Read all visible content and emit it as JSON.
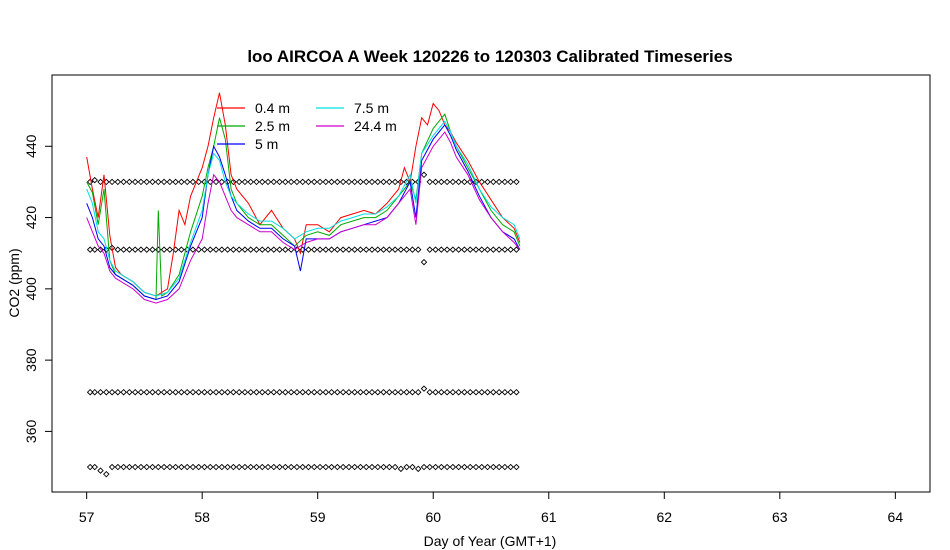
{
  "chart_data": {
    "type": "line",
    "title": "loo AIRCOA A  Week 120226 to 120303  Calibrated Timeseries",
    "xlabel": "Day of Year (GMT+1)",
    "ylabel": "CO2 (ppm)",
    "xlim": [
      56.7,
      64.3
    ],
    "ylim": [
      343,
      460
    ],
    "xticks": [
      57,
      58,
      59,
      60,
      61,
      62,
      63,
      64
    ],
    "yticks": [
      360,
      380,
      400,
      420,
      440
    ],
    "legend_position": "top-left",
    "series": [
      {
        "name": "0.4 m",
        "color": "#ff0000",
        "x": [
          57.0,
          57.05,
          57.1,
          57.15,
          57.2,
          57.25,
          57.3,
          57.4,
          57.5,
          57.6,
          57.7,
          57.75,
          57.8,
          57.85,
          57.9,
          57.95,
          58.0,
          58.05,
          58.1,
          58.15,
          58.2,
          58.25,
          58.3,
          58.4,
          58.5,
          58.6,
          58.7,
          58.8,
          58.85,
          58.9,
          59.0,
          59.1,
          59.2,
          59.3,
          59.4,
          59.5,
          59.6,
          59.7,
          59.75,
          59.8,
          59.85,
          59.9,
          59.95,
          60.0,
          60.05,
          60.1,
          60.15,
          60.2,
          60.3,
          60.4,
          60.5,
          60.6,
          60.7,
          60.75
        ],
        "y": [
          437,
          428,
          420,
          432,
          415,
          406,
          404,
          402,
          399,
          398,
          400,
          410,
          422,
          418,
          426,
          430,
          434,
          440,
          448,
          455,
          446,
          432,
          428,
          424,
          418,
          422,
          417,
          414,
          410,
          418,
          418,
          416,
          420,
          421,
          422,
          421,
          424,
          428,
          434,
          430,
          440,
          448,
          446,
          452,
          450,
          446,
          444,
          441,
          436,
          430,
          425,
          420,
          417,
          413
        ]
      },
      {
        "name": "2.5 m",
        "color": "#00aa00",
        "x": [
          57.0,
          57.05,
          57.1,
          57.15,
          57.2,
          57.25,
          57.3,
          57.4,
          57.5,
          57.6,
          57.62,
          57.65,
          57.7,
          57.8,
          57.9,
          58.0,
          58.05,
          58.1,
          58.15,
          58.2,
          58.25,
          58.3,
          58.4,
          58.5,
          58.6,
          58.7,
          58.8,
          58.9,
          59.0,
          59.1,
          59.2,
          59.3,
          59.4,
          59.5,
          59.6,
          59.7,
          59.8,
          59.85,
          59.9,
          60.0,
          60.05,
          60.1,
          60.15,
          60.2,
          60.3,
          60.4,
          60.5,
          60.6,
          60.7,
          60.75
        ],
        "y": [
          430,
          427,
          418,
          428,
          408,
          404,
          403,
          401,
          398,
          397,
          422,
          398,
          399,
          404,
          416,
          426,
          434,
          440,
          448,
          442,
          428,
          424,
          420,
          418,
          418,
          415,
          412,
          415,
          416,
          415,
          418,
          419,
          420,
          420,
          422,
          426,
          430,
          425,
          438,
          445,
          447,
          449,
          444,
          440,
          434,
          428,
          422,
          418,
          416,
          412
        ]
      },
      {
        "name": "5 m",
        "color": "#0000ff",
        "x": [
          57.0,
          57.05,
          57.1,
          57.15,
          57.2,
          57.25,
          57.3,
          57.4,
          57.5,
          57.6,
          57.7,
          57.8,
          57.9,
          58.0,
          58.05,
          58.1,
          58.15,
          58.2,
          58.25,
          58.3,
          58.4,
          58.5,
          58.6,
          58.7,
          58.8,
          58.85,
          58.9,
          59.0,
          59.1,
          59.2,
          59.3,
          59.4,
          59.5,
          59.6,
          59.7,
          59.8,
          59.85,
          59.9,
          60.0,
          60.05,
          60.1,
          60.15,
          60.2,
          60.3,
          60.4,
          60.5,
          60.6,
          60.7,
          60.75
        ],
        "y": [
          424,
          420,
          414,
          412,
          406,
          404,
          403,
          401,
          398,
          397,
          398,
          402,
          412,
          420,
          432,
          440,
          437,
          432,
          426,
          422,
          419,
          417,
          417,
          414,
          412,
          405,
          414,
          414,
          414,
          416,
          417,
          418,
          419,
          420,
          424,
          430,
          420,
          436,
          442,
          444,
          446,
          443,
          439,
          433,
          426,
          420,
          416,
          414,
          411
        ]
      },
      {
        "name": "7.5 m",
        "color": "#00e0e0",
        "x": [
          57.0,
          57.05,
          57.1,
          57.15,
          57.2,
          57.25,
          57.3,
          57.4,
          57.5,
          57.6,
          57.7,
          57.8,
          57.9,
          58.0,
          58.05,
          58.1,
          58.15,
          58.2,
          58.25,
          58.3,
          58.4,
          58.5,
          58.6,
          58.7,
          58.8,
          58.9,
          59.0,
          59.1,
          59.2,
          59.3,
          59.4,
          59.5,
          59.6,
          59.7,
          59.8,
          59.85,
          59.9,
          60.0,
          60.05,
          60.1,
          60.15,
          60.2,
          60.3,
          60.4,
          60.5,
          60.6,
          60.7,
          60.75
        ],
        "y": [
          428,
          424,
          416,
          414,
          408,
          405,
          404,
          402,
          399,
          398,
          399,
          403,
          413,
          422,
          432,
          438,
          436,
          430,
          426,
          424,
          421,
          419,
          419,
          417,
          414,
          416,
          417,
          417,
          419,
          420,
          421,
          421,
          423,
          426,
          432,
          424,
          438,
          443,
          445,
          447,
          444,
          440,
          435,
          428,
          423,
          420,
          418,
          414
        ]
      },
      {
        "name": "24.4 m",
        "color": "#cc00cc",
        "x": [
          57.0,
          57.05,
          57.1,
          57.15,
          57.2,
          57.25,
          57.3,
          57.4,
          57.5,
          57.6,
          57.7,
          57.8,
          57.9,
          58.0,
          58.05,
          58.1,
          58.15,
          58.2,
          58.25,
          58.3,
          58.4,
          58.5,
          58.6,
          58.7,
          58.8,
          58.9,
          59.0,
          59.1,
          59.2,
          59.3,
          59.4,
          59.5,
          59.6,
          59.7,
          59.8,
          59.85,
          59.9,
          60.0,
          60.05,
          60.1,
          60.15,
          60.2,
          60.3,
          60.4,
          60.5,
          60.6,
          60.7,
          60.75
        ],
        "y": [
          420,
          416,
          412,
          410,
          405,
          403,
          402,
          400,
          397,
          396,
          397,
          400,
          408,
          414,
          424,
          432,
          430,
          426,
          422,
          420,
          418,
          416,
          416,
          413,
          411,
          413,
          414,
          414,
          416,
          417,
          418,
          418,
          420,
          424,
          428,
          418,
          434,
          440,
          442,
          444,
          441,
          437,
          432,
          425,
          420,
          416,
          413,
          411
        ]
      }
    ],
    "calibration_points": {
      "x": [
        57.03,
        57.07,
        57.12,
        57.17,
        57.22,
        57.27,
        57.32,
        57.37,
        57.42,
        57.47,
        57.52,
        57.57,
        57.62,
        57.67,
        57.72,
        57.77,
        57.82,
        57.87,
        57.92,
        57.97,
        58.02,
        58.07,
        58.12,
        58.17,
        58.22,
        58.27,
        58.32,
        58.37,
        58.42,
        58.47,
        58.52,
        58.57,
        58.62,
        58.67,
        58.72,
        58.77,
        58.82,
        58.87,
        58.92,
        58.97,
        59.02,
        59.07,
        59.12,
        59.17,
        59.22,
        59.27,
        59.32,
        59.37,
        59.42,
        59.47,
        59.52,
        59.57,
        59.62,
        59.67,
        59.72,
        59.77,
        59.82,
        59.87,
        59.92,
        59.97,
        60.02,
        60.07,
        60.12,
        60.17,
        60.22,
        60.27,
        60.32,
        60.37,
        60.42,
        60.47,
        60.52,
        60.57,
        60.62,
        60.67,
        60.72
      ],
      "level_430": [
        430,
        430.5,
        430,
        430,
        430,
        430,
        430,
        430,
        430,
        430,
        430,
        430,
        430,
        430,
        430,
        430,
        430,
        430,
        430,
        430,
        430,
        430,
        430,
        430,
        430,
        430,
        430,
        430,
        430,
        430,
        430,
        430,
        430,
        430,
        430,
        430,
        430,
        430,
        430,
        430,
        430,
        430,
        430,
        430,
        430,
        430,
        430,
        430,
        430,
        430,
        430,
        430,
        430,
        430,
        430,
        430,
        430,
        430,
        432,
        430,
        430,
        430,
        430,
        430,
        430,
        430,
        430,
        430,
        430,
        430,
        430,
        430,
        430,
        430,
        430
      ],
      "level_411": [
        411,
        411,
        411,
        411,
        411.5,
        411,
        411,
        411,
        411,
        411,
        411,
        411,
        411,
        411,
        411,
        411,
        411,
        411,
        411,
        411,
        411,
        411,
        411,
        411,
        411,
        411,
        411,
        411,
        411,
        411,
        411,
        411,
        411,
        411,
        411,
        411,
        411,
        411,
        411,
        411,
        411,
        411,
        411,
        411,
        411,
        411,
        411,
        411,
        411,
        411,
        411,
        411,
        411,
        411,
        411,
        411,
        411,
        411,
        407.5,
        411,
        411,
        411,
        411,
        411,
        411,
        411,
        411,
        411,
        411,
        411,
        411,
        411,
        411,
        411,
        411
      ],
      "level_371": [
        371,
        371,
        371,
        371,
        371,
        371,
        371,
        371,
        371,
        371,
        371,
        371,
        371,
        371,
        371,
        371,
        371,
        371,
        371,
        371,
        371,
        371,
        371,
        371,
        371,
        371,
        371,
        371,
        371,
        371,
        371,
        371,
        371,
        371,
        371,
        371,
        371,
        371,
        371,
        371,
        371,
        371,
        371,
        371,
        371,
        371,
        371,
        371,
        371,
        371,
        371,
        371,
        371,
        371,
        371,
        371,
        371,
        371,
        372,
        371,
        371,
        371,
        371,
        371,
        371,
        371,
        371,
        371,
        371,
        371,
        371,
        371,
        371,
        371,
        371
      ],
      "level_350": [
        350,
        350,
        349,
        348,
        350,
        350,
        350,
        350,
        350,
        350,
        350,
        350,
        350,
        350,
        350,
        350,
        350,
        350,
        350,
        350,
        350,
        350,
        350,
        350,
        350,
        350,
        350,
        350,
        350,
        350,
        350,
        350,
        350,
        350,
        350,
        350,
        350,
        350,
        350,
        350,
        350,
        350,
        350,
        350,
        350,
        350,
        350,
        350,
        350,
        350,
        350,
        350,
        350,
        350,
        349.5,
        350,
        350,
        349.5,
        350,
        350,
        350,
        350,
        350,
        350,
        350,
        350,
        350,
        350,
        350,
        350,
        350,
        350,
        350,
        350,
        350
      ]
    }
  }
}
